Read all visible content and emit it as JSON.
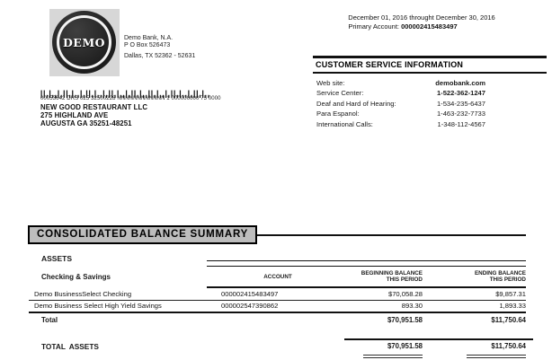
{
  "statement": {
    "period": "December 01, 2016 throught December 30, 2016",
    "primary_account_label": "Primary Account:",
    "primary_account_number": "000002415483497"
  },
  "bank": {
    "logo_text": "DEMO",
    "name": "Demo Bank, N.A.",
    "po_box": "P O Box 526473",
    "city_line": "Dallas, TX 52362 - 52631"
  },
  "customer_service": {
    "title": "CUSTOMER SERVICE INFORMATION",
    "rows": [
      {
        "label": "Web site:",
        "value": "demobank.com"
      },
      {
        "label": "Service Center:",
        "value": "1-522-362-1247"
      },
      {
        "label": "Deaf and Hard of Hearing:",
        "value": "1-534-235-6437"
      },
      {
        "label": "Para Espanol:",
        "value": "1-463-232-7733"
      },
      {
        "label": "International Calls:",
        "value": "1-348-112-4567"
      }
    ]
  },
  "recipient": {
    "mail_code": "00053642 DRS 025 32500228 NNNNNNNNNNNN  1 000000000 75 0000",
    "name": "NEW GOOD RESTAURANT LLC",
    "address1": "275 HIGHLAND AVE",
    "address2": "AUGUSTA GA 35251-48251"
  },
  "summary": {
    "title": "CONSOLIDATED BALANCE SUMMARY",
    "section_label": "ASSETS",
    "group_label": "Checking & Savings",
    "columns": {
      "account": "ACCOUNT",
      "beginning_l1": "BEGINNING BALANCE",
      "beginning_l2": "THIS PERIOD",
      "ending_l1": "ENDING BALANCE",
      "ending_l2": "THIS PERIOD"
    },
    "rows": [
      {
        "name": "Demo BusinessSelect Checking",
        "account": "000002415483497",
        "beginning": "$70,058.28",
        "ending": "$9,857.31"
      },
      {
        "name": "Demo Business Select High Yield Savings",
        "account": "000002547390862",
        "beginning": "893.30",
        "ending": "1,893.33"
      }
    ],
    "total": {
      "label": "Total",
      "beginning": "$70,951.58",
      "ending": "$11,750.64"
    },
    "total_assets": {
      "label": "TOTAL ASSETS",
      "beginning": "$70,951.58",
      "ending": "$11,750.64"
    }
  }
}
